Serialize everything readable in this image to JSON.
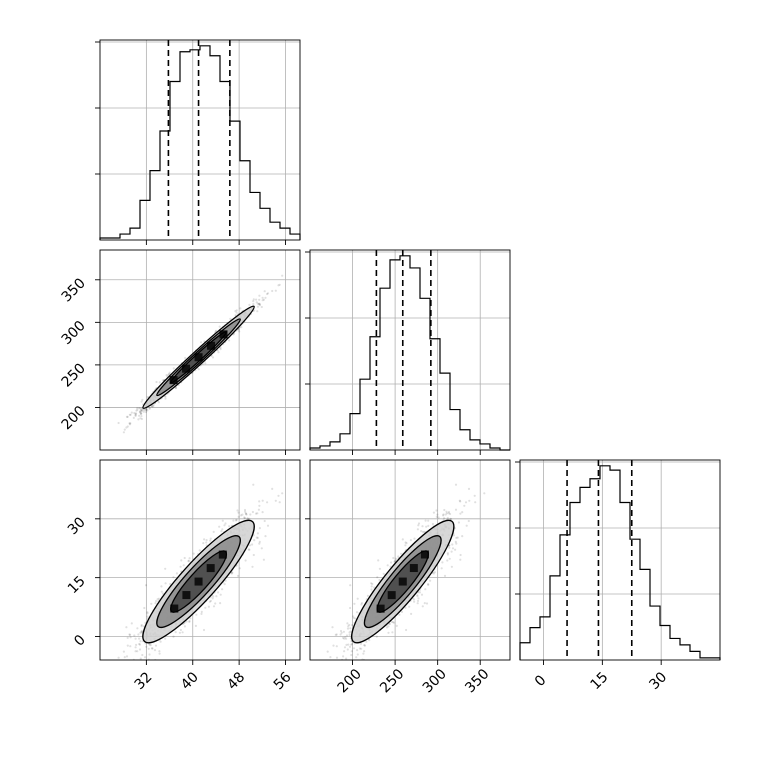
{
  "chart_data": {
    "type": "corner",
    "parameters": [
      {
        "key": "p0",
        "range": [
          24,
          58.5
        ],
        "ticks": [
          32,
          40,
          48,
          56
        ],
        "tick_labels": [
          "32",
          "40",
          "48",
          "56"
        ],
        "quantiles": [
          35.8,
          41.0,
          46.4
        ]
      },
      {
        "key": "p1",
        "range": [
          150,
          385
        ],
        "ticks": [
          200,
          250,
          300,
          350
        ],
        "tick_labels": [
          "200",
          "250",
          "300",
          "350"
        ],
        "quantiles": [
          228,
          259,
          292
        ]
      },
      {
        "key": "p2",
        "range": [
          -6,
          45
        ],
        "ticks": [
          0,
          15,
          30
        ],
        "tick_labels": [
          "0",
          "15",
          "30"
        ],
        "quantiles": [
          6,
          14,
          22.5
        ]
      }
    ],
    "histograms": [
      {
        "param": 0,
        "bins_start": 24,
        "bin_width": 1.725,
        "counts": [
          1,
          1,
          3,
          6,
          20,
          35,
          55,
          80,
          95,
          96,
          98,
          93,
          80,
          60,
          40,
          24,
          16,
          9,
          6,
          3
        ]
      },
      {
        "param": 1,
        "bins_start": 150,
        "bin_width": 11.75,
        "counts": [
          1,
          2,
          4,
          8,
          18,
          35,
          56,
          80,
          94,
          96,
          90,
          75,
          55,
          38,
          20,
          10,
          5,
          3,
          1,
          0
        ]
      },
      {
        "param": 2,
        "bins_start": -6,
        "bin_width": 2.55,
        "counts": [
          8,
          15,
          20,
          39,
          58,
          73,
          80,
          84,
          90,
          88,
          73,
          56,
          42,
          25,
          16,
          10,
          7,
          4,
          1,
          1
        ]
      }
    ],
    "pairs": [
      {
        "x": 0,
        "y": 1,
        "mean": [
          41,
          259
        ],
        "sd": [
          4.8,
          30
        ],
        "corr": 0.985
      },
      {
        "x": 0,
        "y": 2,
        "mean": [
          41,
          14
        ],
        "sd": [
          4.8,
          7.8
        ],
        "corr": 0.9
      },
      {
        "x": 1,
        "y": 2,
        "mean": [
          259,
          14
        ],
        "sd": [
          30,
          7.8
        ],
        "corr": 0.9
      }
    ],
    "contour_levels_sigma": [
      1.0,
      1.5,
      2.0
    ],
    "scatter_points": 1600,
    "grid": true
  },
  "colors": {
    "line": "#000000",
    "grid": "#b0b0b0",
    "scatter": "#000000",
    "fill_light": "#d0d0d0",
    "fill_mid": "#8a8a8a",
    "fill_dark": "#444444",
    "fill_core": "#101010"
  }
}
